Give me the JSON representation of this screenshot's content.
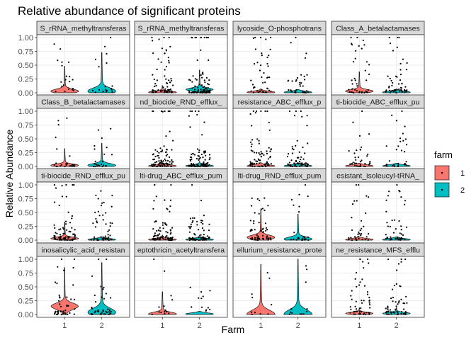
{
  "chart_data": {
    "type": "violin",
    "title": "Relative abundance of significant proteins",
    "xlabel": "Farm",
    "ylabel": "Relative Abundance",
    "x_categories": [
      "1",
      "2"
    ],
    "y_ticks": [
      "0.00",
      "0.25",
      "0.50",
      "0.75",
      "1.00"
    ],
    "ylim": [
      0,
      1
    ],
    "grid": true,
    "legend": {
      "title": "farm",
      "position": "right",
      "entries": [
        {
          "label": "1",
          "color": "#F8766D"
        },
        {
          "label": "2",
          "color": "#00BFC4"
        }
      ]
    },
    "facets": [
      {
        "label": "S_rRNA_methyltransferas",
        "groups": [
          {
            "median": 0.03,
            "spread": 0.45,
            "n": 20,
            "tail": 0.2
          },
          {
            "median": 0.03,
            "spread": 0.7,
            "n": 18,
            "tail": 0.15
          }
        ]
      },
      {
        "label": "S_rRNA_methyltransferas",
        "groups": [
          {
            "median": 0.01,
            "spread": 0.12,
            "n": 70,
            "tail": 0.6
          },
          {
            "median": 0.06,
            "spread": 0.35,
            "n": 90,
            "tail": 0.8
          }
        ]
      },
      {
        "label": "lycoside_O-phosphotrans",
        "groups": [
          {
            "median": 0.01,
            "spread": 0.06,
            "n": 45,
            "tail": 0.5
          },
          {
            "median": 0.01,
            "spread": 0.05,
            "n": 35,
            "tail": 0.3
          }
        ]
      },
      {
        "label": "Class_A_betalactamases",
        "groups": [
          {
            "median": 0.03,
            "spread": 0.35,
            "n": 40,
            "tail": 0.5
          },
          {
            "median": 0.01,
            "spread": 0.06,
            "n": 55,
            "tail": 0.6
          }
        ]
      },
      {
        "label": "Class_B_betalactamases",
        "groups": [
          {
            "median": 0.02,
            "spread": 0.3,
            "n": 25,
            "tail": 0.5
          },
          {
            "median": 0.02,
            "spread": 0.4,
            "n": 22,
            "tail": 0.4
          }
        ]
      },
      {
        "label": "nd_biocide_RND_efflux_",
        "groups": [
          {
            "median": 0.01,
            "spread": 0.08,
            "n": 90,
            "tail": 0.9
          },
          {
            "median": 0.01,
            "spread": 0.08,
            "n": 90,
            "tail": 0.9
          }
        ]
      },
      {
        "label": "resistance_ABC_efflux_p",
        "groups": [
          {
            "median": 0.01,
            "spread": 0.06,
            "n": 80,
            "tail": 0.8
          },
          {
            "median": 0.01,
            "spread": 0.06,
            "n": 70,
            "tail": 0.7
          }
        ]
      },
      {
        "label": "ti-biocide_ABC_efflux_pu",
        "groups": [
          {
            "median": 0.01,
            "spread": 0.05,
            "n": 35,
            "tail": 0.4
          },
          {
            "median": 0.01,
            "spread": 0.05,
            "n": 30,
            "tail": 0.4
          }
        ]
      },
      {
        "label": "ti-biocide_RND_efflux_pu",
        "groups": [
          {
            "median": 0.03,
            "spread": 0.3,
            "n": 75,
            "tail": 0.7
          },
          {
            "median": 0.01,
            "spread": 0.05,
            "n": 55,
            "tail": 0.5
          }
        ]
      },
      {
        "label": "lti-drug_ABC_efflux_pum",
        "groups": [
          {
            "median": 0.01,
            "spread": 0.08,
            "n": 85,
            "tail": 0.8
          },
          {
            "median": 0.01,
            "spread": 0.08,
            "n": 80,
            "tail": 0.8
          }
        ]
      },
      {
        "label": "lti-drug_RND_efflux_pum",
        "groups": [
          {
            "median": 0.05,
            "spread": 0.5,
            "n": 60,
            "tail": 0.4
          },
          {
            "median": 0.02,
            "spread": 0.45,
            "n": 25,
            "tail": 0.3
          }
        ]
      },
      {
        "label": "esistant_isoleucyl-tRNA_",
        "groups": [
          {
            "median": 0.01,
            "spread": 0.05,
            "n": 35,
            "tail": 0.4
          },
          {
            "median": 0.01,
            "spread": 0.05,
            "n": 45,
            "tail": 0.4
          }
        ]
      },
      {
        "label": "inosalicylic_acid_resistan",
        "groups": [
          {
            "median": 0.15,
            "spread": 0.7,
            "n": 45,
            "tail": 0.5
          },
          {
            "median": 0.04,
            "spread": 0.9,
            "n": 40,
            "tail": 0.5
          }
        ]
      },
      {
        "label": "eptothricin_acetyltransfera",
        "groups": [
          {
            "median": 0.01,
            "spread": 0.4,
            "n": 15,
            "tail": 0.3
          },
          {
            "median": 0.01,
            "spread": 0.05,
            "n": 12,
            "tail": 0.2
          }
        ]
      },
      {
        "label": "ellurium_resistance_prote",
        "groups": [
          {
            "median": 0.005,
            "spread": 0.9,
            "n": 10,
            "tail": 0.1
          },
          {
            "median": 0.005,
            "spread": 1.0,
            "n": 12,
            "tail": 0.3
          }
        ]
      },
      {
        "label": "ne_resistance_MFS_efflu",
        "groups": [
          {
            "median": 0.02,
            "spread": 0.1,
            "n": 55,
            "tail": 0.6
          },
          {
            "median": 0.02,
            "spread": 0.1,
            "n": 60,
            "tail": 0.6
          }
        ]
      }
    ]
  }
}
